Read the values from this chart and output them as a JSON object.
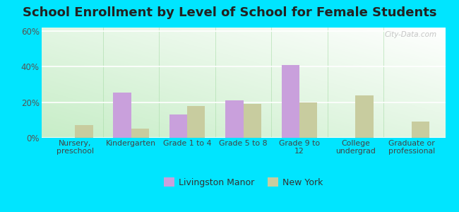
{
  "title": "School Enrollment by Level of School for Female Students",
  "categories": [
    "Nursery,\npreschool",
    "Kindergarten",
    "Grade 1 to 4",
    "Grade 5 to 8",
    "Grade 9 to\n12",
    "College\nundergrad",
    "Graduate or\nprofessional"
  ],
  "livingston_manor": [
    0,
    25.5,
    13.0,
    21.0,
    41.0,
    0,
    0
  ],
  "new_york": [
    7.0,
    5.0,
    18.0,
    19.0,
    20.0,
    24.0,
    9.0
  ],
  "bar_color_livingston": "#c9a0dc",
  "bar_color_ny": "#c8cc9f",
  "background_outer": "#00e5ff",
  "ylim": [
    0,
    62
  ],
  "yticks": [
    0,
    20,
    40,
    60
  ],
  "ytick_labels": [
    "0%",
    "20%",
    "40%",
    "60%"
  ],
  "title_fontsize": 13,
  "legend_labels": [
    "Livingston Manor",
    "New York"
  ],
  "watermark": "City-Data.com"
}
